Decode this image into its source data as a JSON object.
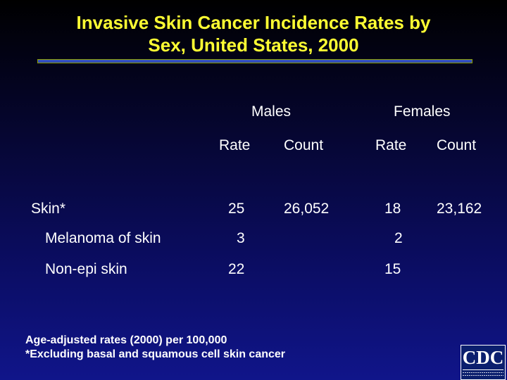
{
  "title": {
    "line1": "Invasive Skin Cancer Incidence Rates by",
    "line2": "Sex, United States, 2000"
  },
  "table": {
    "groups": {
      "males": "Males",
      "females": "Females"
    },
    "subheaders": {
      "male_rate": "Rate",
      "male_count": "Count",
      "female_rate": "Rate",
      "female_count": "Count"
    },
    "rows": [
      {
        "label": "Skin*",
        "male_rate": "25",
        "male_count": "26,052",
        "female_rate": "18",
        "female_count": "23,162"
      },
      {
        "label": "Melanoma of skin",
        "male_rate": "3",
        "male_count": "",
        "female_rate": "2",
        "female_count": ""
      },
      {
        "label": "Non-epi skin",
        "male_rate": "22",
        "male_count": "",
        "female_rate": "15",
        "female_count": ""
      }
    ]
  },
  "footnotes": {
    "line1": "Age-adjusted rates (2000) per 100,000",
    "line2": "*Excluding basal and squamous cell skin cancer"
  },
  "logo": {
    "text": "CDC",
    "subtext": "CENTERS FOR DISEASE CONTROL AND PREVENTION"
  },
  "colors": {
    "title": "#ffff33",
    "background_top": "#000000",
    "background_bottom": "#10158a",
    "text": "#ffffff"
  }
}
